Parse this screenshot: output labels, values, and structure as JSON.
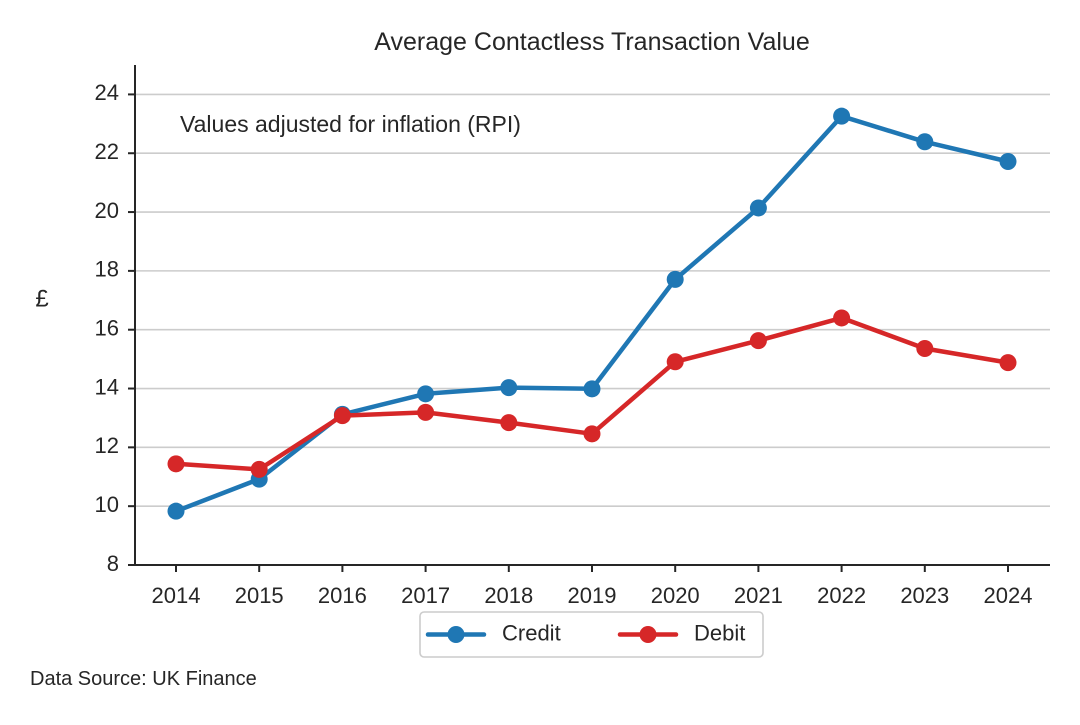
{
  "chart_data": {
    "type": "line",
    "title": "Average Contactless Transaction Value",
    "xlabel": "",
    "ylabel": "£",
    "categories": [
      "2014",
      "2015",
      "2016",
      "2017",
      "2018",
      "2019",
      "2020",
      "2021",
      "2022",
      "2023",
      "2024"
    ],
    "series": [
      {
        "name": "Credit",
        "color": "#1f77b4",
        "values": [
          9.83,
          10.92,
          13.12,
          13.82,
          14.03,
          13.99,
          17.71,
          20.14,
          23.26,
          22.39,
          21.72
        ]
      },
      {
        "name": "Debit",
        "color": "#d62728",
        "values": [
          11.44,
          11.25,
          13.08,
          13.19,
          12.84,
          12.46,
          14.91,
          15.63,
          16.4,
          15.36,
          14.88
        ]
      }
    ],
    "ylim": [
      8,
      25
    ],
    "yticks": [
      8,
      10,
      12,
      14,
      16,
      18,
      20,
      22,
      24
    ],
    "grid": "horizontal",
    "legend_position": "bottom-center",
    "annotation": "Values adjusted for inflation (RPI)",
    "source_note": "Data Source: UK Finance"
  }
}
